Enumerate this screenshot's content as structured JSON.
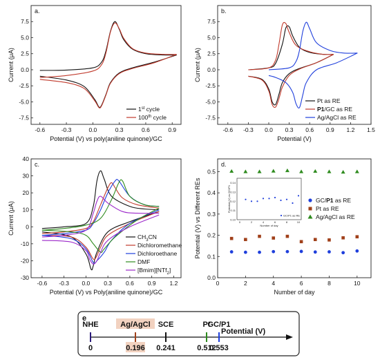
{
  "chart_data": [
    {
      "type": "line",
      "panel_label": "a.",
      "xlabel": "Potential (V) vs poly(aniline quinone)/GC",
      "ylabel": "Current (μA)",
      "xlim": [
        -0.7,
        1.0
      ],
      "ylim": [
        -8.5,
        10.0
      ],
      "x_ticks": [
        "-0.6",
        "-0.3",
        "0.0",
        "0.3",
        "0.6",
        "0.9"
      ],
      "x_tick_values": [
        -0.6,
        -0.3,
        0.0,
        0.3,
        0.6,
        0.9
      ],
      "y_ticks": [
        "-7.5",
        "-5.0",
        "-2.5",
        "0.0",
        "2.5",
        "5.0",
        "7.5"
      ],
      "y_tick_values": [
        -7.5,
        -5.0,
        -2.5,
        0.0,
        2.5,
        5.0,
        7.5
      ],
      "series": [
        {
          "name": "1st cycle",
          "color": "#111111",
          "ox": {
            "x": [
              -0.6,
              -0.3,
              0.0,
              0.1,
              0.15,
              0.2,
              0.25,
              0.3,
              0.35,
              0.45,
              0.6,
              0.8,
              0.95
            ],
            "y": [
              -0.1,
              -0.05,
              0.3,
              1.2,
              3.0,
              6.0,
              7.5,
              6.3,
              4.7,
              3.2,
              2.5,
              2.3,
              2.3
            ]
          },
          "red": {
            "x": [
              0.95,
              0.7,
              0.45,
              0.3,
              0.2,
              0.15,
              0.1,
              0.07,
              0.02,
              -0.1,
              -0.3,
              -0.6
            ],
            "y": [
              2.3,
              1.2,
              0.3,
              -0.5,
              -2.0,
              -3.8,
              -5.5,
              -5.8,
              -4.6,
              -2.6,
              -1.6,
              -1.0
            ]
          }
        },
        {
          "name": "100th cycle",
          "color": "#c0392b",
          "ox": {
            "x": [
              -0.6,
              -0.3,
              0.0,
              0.1,
              0.15,
              0.2,
              0.25,
              0.3,
              0.35,
              0.45,
              0.6,
              0.8,
              0.95
            ],
            "y": [
              -1.2,
              -0.9,
              -0.2,
              0.8,
              2.7,
              5.9,
              7.3,
              6.4,
              4.9,
              3.3,
              2.6,
              2.4,
              2.4
            ]
          },
          "red": {
            "x": [
              0.95,
              0.7,
              0.45,
              0.3,
              0.2,
              0.15,
              0.1,
              0.07,
              0.02,
              -0.1,
              -0.3,
              -0.6
            ],
            "y": [
              2.4,
              1.1,
              0.2,
              -0.6,
              -2.1,
              -3.9,
              -5.6,
              -5.9,
              -4.8,
              -2.9,
              -2.0,
              -1.5
            ]
          }
        }
      ],
      "legend": {
        "entries": [
          {
            "text": "1",
            "sup": "st",
            "suffix": " cycle"
          },
          {
            "text": "100",
            "sup": "th",
            "suffix": " cycle"
          }
        ]
      }
    },
    {
      "type": "line",
      "panel_label": "b.",
      "xlabel": "Potential (V)",
      "ylabel": "Current (μA)",
      "xlim": [
        -0.75,
        1.5
      ],
      "ylim": [
        -8.5,
        10.0
      ],
      "x_ticks": [
        "-0.6",
        "-0.3",
        "0.0",
        "0.3",
        "0.6",
        "0.9",
        "1.2",
        "1.5"
      ],
      "x_tick_values": [
        -0.6,
        -0.3,
        0.0,
        0.3,
        0.6,
        0.9,
        1.2,
        1.5
      ],
      "y_ticks": [
        "-7.5",
        "-5.0",
        "-2.5",
        "0.0",
        "2.5",
        "5.0",
        "7.5"
      ],
      "y_tick_values": [
        -7.5,
        -5.0,
        -2.5,
        0.0,
        2.5,
        5.0,
        7.5
      ],
      "series": [
        {
          "name": "Pt as RE",
          "color": "#111111",
          "ox": {
            "x": [
              -0.3,
              0.0,
              0.1,
              0.2,
              0.25,
              0.3,
              0.35,
              0.45,
              0.6,
              0.8,
              0.95
            ],
            "y": [
              0.0,
              0.3,
              1.0,
              4.0,
              6.5,
              6.7,
              5.3,
              3.5,
              2.7,
              2.4,
              2.4
            ]
          },
          "red": {
            "x": [
              0.95,
              0.7,
              0.45,
              0.3,
              0.2,
              0.15,
              0.1,
              0.05,
              0.0,
              -0.1,
              -0.3
            ],
            "y": [
              2.4,
              1.1,
              0.2,
              -0.6,
              -2.0,
              -3.8,
              -5.4,
              -5.0,
              -3.0,
              -1.5,
              -1.0
            ]
          }
        },
        {
          "name": "P1/GC as RE",
          "color": "#c0392b",
          "ox": {
            "x": [
              -0.3,
              0.0,
              0.1,
              0.15,
              0.2,
              0.25,
              0.3,
              0.4,
              0.6,
              0.8,
              0.95
            ],
            "y": [
              0.0,
              0.3,
              1.5,
              4.0,
              7.0,
              7.2,
              5.8,
              3.8,
              2.8,
              2.4,
              2.4
            ]
          },
          "red": {
            "x": [
              0.95,
              0.7,
              0.45,
              0.3,
              0.2,
              0.15,
              0.1,
              0.05,
              0.0,
              -0.1,
              -0.3
            ],
            "y": [
              2.4,
              1.1,
              0.1,
              -0.9,
              -2.7,
              -4.5,
              -5.8,
              -5.4,
              -3.3,
              -1.6,
              -1.0
            ]
          }
        },
        {
          "name": "Ag/AgCl as RE",
          "color": "#1f3fdc",
          "ox": {
            "x": [
              0.0,
              0.3,
              0.4,
              0.45,
              0.5,
              0.55,
              0.6,
              0.7,
              0.9,
              1.1,
              1.3
            ],
            "y": [
              0.0,
              0.3,
              1.3,
              3.0,
              6.0,
              7.4,
              6.4,
              4.2,
              3.0,
              2.6,
              2.6
            ]
          },
          "red": {
            "x": [
              1.3,
              1.0,
              0.7,
              0.55,
              0.5,
              0.45,
              0.4,
              0.35,
              0.25,
              0.1,
              0.0
            ],
            "y": [
              2.6,
              1.1,
              0.0,
              -2.0,
              -3.9,
              -5.9,
              -5.3,
              -3.5,
              -2.0,
              -1.2,
              -0.9
            ]
          }
        }
      ],
      "legend": {
        "entries": [
          {
            "text": "Pt as RE"
          },
          {
            "text": "P1",
            "bold": true,
            "suffix": "/GC as RE"
          },
          {
            "text": "Ag/AgCl as RE"
          }
        ]
      }
    },
    {
      "type": "line",
      "panel_label": "c.",
      "xlabel": "Potential (V) vs Poly(aniline quinone)/GC",
      "ylabel": "Current (μA)",
      "xlim": [
        -0.75,
        1.3
      ],
      "ylim": [
        -30,
        40
      ],
      "x_ticks": [
        "-0.6",
        "-0.3",
        "0.0",
        "0.3",
        "0.6",
        "0.9",
        "1.2"
      ],
      "x_tick_values": [
        -0.6,
        -0.3,
        0.0,
        0.3,
        0.6,
        0.9,
        1.2
      ],
      "y_ticks": [
        "-30",
        "-20",
        "-10",
        "0",
        "10",
        "20",
        "30",
        "40"
      ],
      "y_tick_values": [
        -30,
        -20,
        -10,
        0,
        10,
        20,
        30,
        40
      ],
      "series": [
        {
          "name": "CH3CN",
          "color": "#111111",
          "ox": {
            "x": [
              -0.6,
              -0.3,
              0.0,
              0.1,
              0.15,
              0.2,
              0.25,
              0.35,
              0.6,
              0.8,
              1.0
            ],
            "y": [
              -1.0,
              0.0,
              2.0,
              12.0,
              27.0,
              33.0,
              28.0,
              18.0,
              12.0,
              10.5,
              10.0
            ]
          },
          "red": {
            "x": [
              1.0,
              0.6,
              0.3,
              0.15,
              0.1,
              0.07,
              0.0,
              -0.2,
              -0.6
            ],
            "y": [
              9.0,
              3.0,
              -3.0,
              -15.0,
              -23.0,
              -25.0,
              -16.0,
              -6.0,
              -3.0
            ]
          }
        },
        {
          "name": "Dichloromethane",
          "color": "#c0392b",
          "ox": {
            "x": [
              -0.6,
              -0.3,
              0.0,
              0.1,
              0.2,
              0.3,
              0.35,
              0.4,
              0.5,
              0.7,
              1.0
            ],
            "y": [
              -4.0,
              -3.0,
              -1.0,
              3.0,
              13.0,
              23.0,
              26.0,
              23.0,
              17.0,
              13.0,
              11.0
            ]
          },
          "red": {
            "x": [
              1.0,
              0.6,
              0.3,
              0.2,
              0.15,
              0.1,
              0.0,
              -0.2,
              -0.6
            ],
            "y": [
              9.0,
              2.0,
              -5.0,
              -12.0,
              -17.0,
              -19.0,
              -12.0,
              -6.0,
              -5.0
            ]
          }
        },
        {
          "name": "Dichloroethane",
          "color": "#1f3fdc",
          "ox": {
            "x": [
              -0.6,
              -0.3,
              0.0,
              0.1,
              0.2,
              0.3,
              0.4,
              0.45,
              0.6,
              0.8,
              1.0
            ],
            "y": [
              -5.0,
              -4.0,
              -2.0,
              2.0,
              10.0,
              20.0,
              27.0,
              27.0,
              18.0,
              13.0,
              12.0
            ]
          },
          "red": {
            "x": [
              1.0,
              0.6,
              0.35,
              0.25,
              0.15,
              0.1,
              0.0,
              -0.2,
              -0.6
            ],
            "y": [
              10.0,
              2.0,
              -8.0,
              -15.0,
              -20.0,
              -21.0,
              -13.0,
              -7.0,
              -5.0
            ]
          }
        },
        {
          "name": "DMF",
          "color": "#2e8b1e",
          "ox": {
            "x": [
              -0.6,
              -0.3,
              0.0,
              0.2,
              0.35,
              0.45,
              0.5,
              0.6,
              0.8,
              1.0
            ],
            "y": [
              -2.0,
              -1.0,
              1.0,
              5.0,
              16.0,
              26.0,
              27.0,
              18.0,
              13.0,
              12.0
            ]
          },
          "red": {
            "x": [
              1.0,
              0.7,
              0.4,
              0.25,
              0.2,
              0.1,
              0.0,
              -0.2,
              -0.6
            ],
            "y": [
              11.0,
              4.0,
              -6.0,
              -13.0,
              -15.0,
              -10.0,
              -5.0,
              -3.0,
              -2.0
            ]
          }
        },
        {
          "name": "[Bmim][NTf2]",
          "color": "#9b27c9",
          "ox": {
            "x": [
              -0.6,
              -0.3,
              0.0,
              0.1,
              0.15,
              0.2,
              0.3,
              0.5,
              0.7,
              1.0
            ],
            "y": [
              -6.0,
              -5.0,
              -2.0,
              8.0,
              15.0,
              18.0,
              14.0,
              9.0,
              8.0,
              8.0
            ]
          },
          "red": {
            "x": [
              1.0,
              0.6,
              0.3,
              0.2,
              0.15,
              0.1,
              0.05,
              0.0,
              -0.2,
              -0.6
            ],
            "y": [
              7.0,
              0.0,
              -8.0,
              -15.0,
              -20.0,
              -22.0,
              -19.0,
              -14.0,
              -9.0,
              -8.0
            ]
          }
        }
      ],
      "legend": {
        "entries": [
          {
            "text": "CH",
            "sub": "3",
            "suffix": "CN"
          },
          {
            "text": "Dichloromethane"
          },
          {
            "text": "Dichloroethane"
          },
          {
            "text": "DMF"
          },
          {
            "text": "[Bmim][NTf",
            "sub": "2",
            "suffix": "]"
          }
        ]
      }
    },
    {
      "type": "scatter",
      "panel_label": "d.",
      "xlabel": "Number of day",
      "ylabel": "Potential (V) vs Different REs",
      "xlim": [
        0,
        11
      ],
      "ylim": [
        0.0,
        0.56
      ],
      "x_ticks": [
        "0",
        "2",
        "4",
        "6",
        "8",
        "10"
      ],
      "x_tick_values": [
        0,
        2,
        4,
        6,
        8,
        10
      ],
      "y_ticks": [
        "0.0",
        "0.1",
        "0.2",
        "0.3",
        "0.4",
        "0.5"
      ],
      "y_tick_values": [
        0.0,
        0.1,
        0.2,
        0.3,
        0.4,
        0.5
      ],
      "x": [
        1,
        2,
        3,
        4,
        5,
        6,
        7,
        8,
        9,
        10
      ],
      "series": [
        {
          "name": "GC/P1 as RE",
          "color": "#1f3fdc",
          "marker": "circle",
          "values": [
            0.122,
            0.12,
            0.12,
            0.123,
            0.123,
            0.124,
            0.121,
            0.122,
            0.118,
            0.126
          ]
        },
        {
          "name": "Pt as RE",
          "color": "#a0401a",
          "marker": "square",
          "values": [
            0.185,
            0.18,
            0.195,
            0.187,
            0.195,
            0.17,
            0.18,
            0.178,
            0.188,
            0.193
          ]
        },
        {
          "name": "Ag/AgCl as RE",
          "color": "#2e8b1e",
          "marker": "triangle",
          "values": [
            0.502,
            0.5,
            0.5,
            0.503,
            0.505,
            0.5,
            0.502,
            0.5,
            0.498,
            0.5
          ]
        }
      ],
      "legend": {
        "entries": [
          {
            "text": "GC/",
            "bold_part": "P1",
            "suffix": " as RE"
          },
          {
            "text": "Pt as RE"
          },
          {
            "text": "Ag/AgCl as RE"
          }
        ]
      },
      "inset": {
        "xlabel": "Number of day",
        "ylabel": "Potential (V) vs GC/P1",
        "legend": "GC/P1 as RE",
        "x_ticks": [
          "0",
          "2",
          "4",
          "6",
          "8",
          "10"
        ],
        "y_ticks": [
          "0.10",
          "0.11",
          "0.12",
          "0.13",
          "0.14"
        ]
      }
    }
  ],
  "scale_panel": {
    "label": "e",
    "arrow_label": "Potential (V)",
    "items": [
      {
        "name": "NHE",
        "value": "0",
        "name_color": "#2b1a7a",
        "value_color": "#1f3fdc",
        "bg": ""
      },
      {
        "name": "Ag/AgCl",
        "value": "0.196",
        "name_color": "#a0401a",
        "value_color": "#a0401a",
        "bg": "#f2d2c0"
      },
      {
        "name": "SCE",
        "value": "0.241",
        "name_color": "#111111",
        "value_color": "#111111",
        "bg": ""
      },
      {
        "name": "Pt",
        "value": "0.512",
        "name_color": "#2e8b1e",
        "value_color": "#2e8b1e",
        "bg": ""
      },
      {
        "name": "GC/P1",
        "value": "0.553",
        "name_color": "#1f3fdc",
        "value_color": "#1f3fdc",
        "bg": ""
      }
    ]
  }
}
